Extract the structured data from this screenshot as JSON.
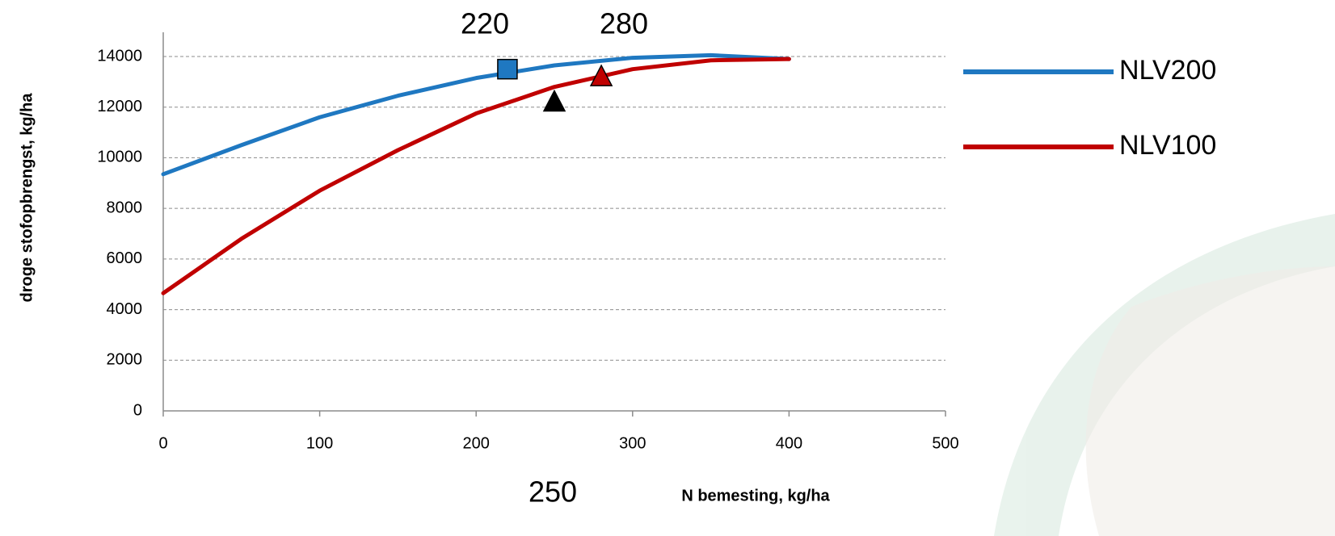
{
  "chart_data": {
    "type": "line",
    "y_label": "droge stofopbrengst, kg/ha",
    "x_label": "N bemesting, kg/ha",
    "x": [
      0,
      50,
      100,
      150,
      200,
      250,
      300,
      350,
      400
    ],
    "series": [
      {
        "name": "NLV200",
        "color": "#1f78c1",
        "values": [
          9350,
          10500,
          11600,
          12450,
          13150,
          13650,
          13950,
          14050,
          13900
        ]
      },
      {
        "name": "NLV100",
        "color": "#c00000",
        "values": [
          4650,
          6800,
          8700,
          10300,
          11750,
          12800,
          13500,
          13850,
          13900
        ]
      }
    ],
    "markers": [
      {
        "x": 220,
        "y": 13500,
        "color": "#1f78c1",
        "shape": "square"
      },
      {
        "x": 280,
        "y": 13200,
        "color": "#c00000",
        "shape": "triangle"
      },
      {
        "x": 250,
        "y": 12200,
        "color": "#000000",
        "shape": "triangle"
      }
    ],
    "annotations": [
      "220",
      "280",
      "250"
    ],
    "xlim": [
      0,
      500
    ],
    "xticks": [
      0,
      100,
      200,
      300,
      400,
      500
    ],
    "ylim": [
      0,
      14000
    ],
    "yticks": [
      0,
      2000,
      4000,
      6000,
      8000,
      10000,
      12000,
      14000
    ],
    "grid": true
  }
}
